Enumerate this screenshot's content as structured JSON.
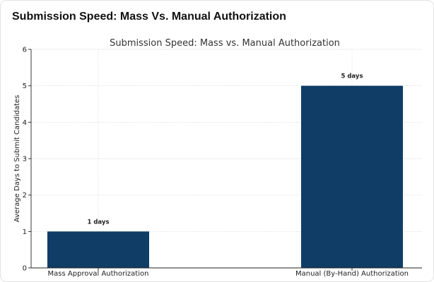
{
  "page": {
    "title": "Submission Speed: Mass Vs. Manual Authorization"
  },
  "chart_data": {
    "type": "bar",
    "title": "Submission Speed: Mass vs. Manual Authorization",
    "xlabel": "",
    "ylabel": "Average Days to Submit Candidates",
    "categories": [
      "Mass Approval Authorization",
      "Manual (By-Hand) Authorization"
    ],
    "values": [
      1,
      5
    ],
    "data_labels": [
      "1 days",
      "5 days"
    ],
    "ylim": [
      0,
      6
    ],
    "yticks": [
      "0",
      "1",
      "2",
      "3",
      "4",
      "5",
      "6"
    ],
    "grid": true,
    "bar_color": "#0f3d66"
  }
}
